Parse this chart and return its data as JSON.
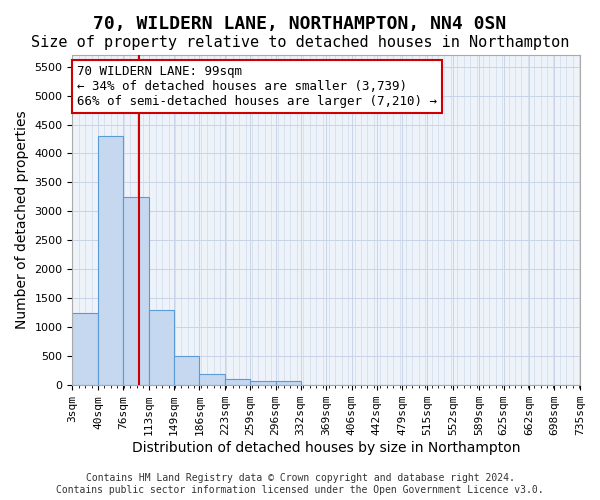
{
  "title": "70, WILDERN LANE, NORTHAMPTON, NN4 0SN",
  "subtitle": "Size of property relative to detached houses in Northampton",
  "xlabel": "Distribution of detached houses by size in Northampton",
  "ylabel": "Number of detached properties",
  "bar_color": "#c5d8f0",
  "bar_edge_color": "#5b9bd5",
  "bins": [
    "3sqm",
    "40sqm",
    "76sqm",
    "113sqm",
    "149sqm",
    "186sqm",
    "223sqm",
    "259sqm",
    "296sqm",
    "332sqm",
    "369sqm",
    "406sqm",
    "442sqm",
    "479sqm",
    "515sqm",
    "552sqm",
    "589sqm",
    "625sqm",
    "662sqm",
    "698sqm",
    "735sqm"
  ],
  "bin_edges": [
    3,
    40,
    76,
    113,
    149,
    186,
    223,
    259,
    296,
    332,
    369,
    406,
    442,
    479,
    515,
    552,
    589,
    625,
    662,
    698,
    735
  ],
  "bar_heights": [
    1250,
    4300,
    3250,
    1300,
    500,
    200,
    100,
    75,
    75,
    0,
    0,
    0,
    0,
    0,
    0,
    0,
    0,
    0,
    0,
    0
  ],
  "ylim": [
    0,
    5700
  ],
  "yticks": [
    0,
    500,
    1000,
    1500,
    2000,
    2500,
    3000,
    3500,
    4000,
    4500,
    5000,
    5500
  ],
  "property_size": 99,
  "red_line_color": "#cc0000",
  "annotation_text": "70 WILDERN LANE: 99sqm\n← 34% of detached houses are smaller (3,739)\n66% of semi-detached houses are larger (7,210) →",
  "annotation_box_color": "#ffffff",
  "annotation_box_edge_color": "#cc0000",
  "grid_color": "#c8d4e8",
  "background_color": "#eef2f9",
  "footer_text": "Contains HM Land Registry data © Crown copyright and database right 2024.\nContains public sector information licensed under the Open Government Licence v3.0.",
  "title_fontsize": 13,
  "subtitle_fontsize": 11,
  "annotation_fontsize": 9,
  "tick_label_fontsize": 8,
  "axis_label_fontsize": 10
}
